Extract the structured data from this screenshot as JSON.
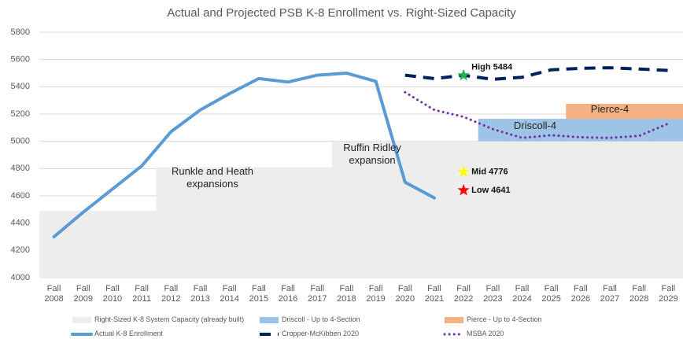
{
  "chart_data": {
    "type": "combo",
    "title": "Actual and Projected PSB K-8 Enrollment vs. Right-Sized Capacity",
    "categories": [
      "Fall 2008",
      "Fall 2009",
      "Fall 2010",
      "Fall 2011",
      "Fall 2012",
      "Fall 2013",
      "Fall 2014",
      "Fall 2015",
      "Fall 2016",
      "Fall 2017",
      "Fall 2018",
      "Fall 2019",
      "Fall 2020",
      "Fall 2021",
      "Fall 2022",
      "Fall 2023",
      "Fall 2024",
      "Fall 2025",
      "Fall 2026",
      "Fall 2027",
      "Fall 2028",
      "Fall 2029"
    ],
    "ylim": [
      4000,
      5800
    ],
    "yticks": [
      4000,
      4200,
      4400,
      4600,
      4800,
      5000,
      5200,
      5400,
      5600,
      5800
    ],
    "grid": true,
    "legend": "bottom",
    "series": [
      {
        "name": "Right-Sized K-8 System Capacity (already built)",
        "type": "bar",
        "color": "#ededed",
        "values": [
          4490,
          4490,
          4490,
          4490,
          4810,
          4810,
          4810,
          4810,
          4810,
          4810,
          5000,
          5000,
          5000,
          5000,
          5000,
          5000,
          5000,
          5000,
          5000,
          5000,
          5000,
          5000
        ]
      },
      {
        "name": "Driscoll - Up to 4-Section",
        "type": "bar",
        "color": "#9dc3e6",
        "values": [
          null,
          null,
          null,
          null,
          null,
          null,
          null,
          null,
          null,
          null,
          null,
          null,
          null,
          null,
          null,
          165,
          165,
          165,
          165,
          165,
          165,
          165
        ]
      },
      {
        "name": "Pierce - Up to 4-Section",
        "type": "bar",
        "color": "#f4b183",
        "values": [
          null,
          null,
          null,
          null,
          null,
          null,
          null,
          null,
          null,
          null,
          null,
          null,
          null,
          null,
          null,
          null,
          null,
          null,
          110,
          110,
          110,
          110
        ]
      },
      {
        "name": "Actual K-8 Enrollment",
        "type": "line",
        "style": "solid",
        "color": "#5b9bd5",
        "values": [
          4300,
          4480,
          4650,
          4820,
          5070,
          5230,
          5350,
          5460,
          5435,
          5485,
          5500,
          5440,
          4700,
          4585,
          null,
          null,
          null,
          null,
          null,
          null,
          null,
          null
        ]
      },
      {
        "name": "Cropper-McKibben 2020",
        "type": "line",
        "style": "dashed",
        "color": "#002060",
        "values": [
          null,
          null,
          null,
          null,
          null,
          null,
          null,
          null,
          null,
          null,
          null,
          null,
          5485,
          5460,
          5484,
          5455,
          5470,
          5525,
          5535,
          5540,
          5530,
          5520
        ]
      },
      {
        "name": "MSBA 2020",
        "type": "line",
        "style": "dotted",
        "color": "#7030a0",
        "values": [
          null,
          null,
          null,
          null,
          null,
          null,
          null,
          null,
          null,
          null,
          null,
          null,
          5360,
          5230,
          5180,
          5090,
          5025,
          5045,
          5030,
          5025,
          5040,
          5130
        ]
      }
    ],
    "markers": [
      {
        "label": "High 5484",
        "x": "Fall 2022",
        "value": 5484,
        "color": "#22b14c"
      },
      {
        "label": "Mid 4776",
        "x": "Fall 2022",
        "value": 4776,
        "color": "#ffff00"
      },
      {
        "label": "Low 4641",
        "x": "Fall 2022",
        "value": 4641,
        "color": "#ff0000"
      }
    ],
    "annotations": [
      "Runkle and Heath expansions",
      "Ruffin Ridley expansion",
      "Driscoll-4",
      "Pierce-4"
    ]
  }
}
